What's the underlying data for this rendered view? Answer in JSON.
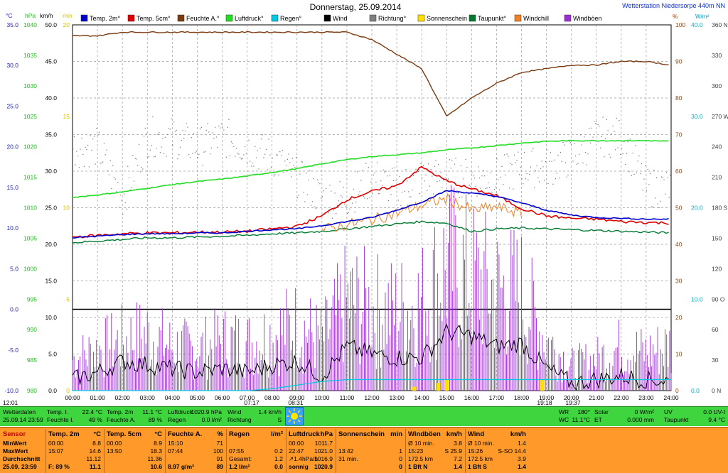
{
  "header": {
    "title": "Donnerstag, 25.09.2014",
    "station": "Wetterstation Niedersorpe 440m NN",
    "pct_unit": "%",
    "wm2_unit": "W/m²"
  },
  "legend": [
    {
      "label": "Temp. 2m°",
      "color": "#0000cc"
    },
    {
      "label": "Temp. 5cm°",
      "color": "#e00000"
    },
    {
      "label": "Feuchte A.°",
      "color": "#7a3a10"
    },
    {
      "label": "Luftdruck°",
      "color": "#22dd22"
    },
    {
      "label": "Regen°",
      "color": "#00c8e0"
    },
    {
      "label": "Wind",
      "color": "#000000"
    },
    {
      "label": "Richtung°",
      "color": "#808080"
    },
    {
      "label": "Sonnenschein",
      "color": "#ffe000"
    },
    {
      "label": "Taupunkt°",
      "color": "#007a30"
    },
    {
      "label": "Windchill",
      "color": "#f08020"
    },
    {
      "label": "Windböen",
      "color": "#9a30d0"
    }
  ],
  "axes": {
    "temp": {
      "unit": "°C",
      "ticks": [
        "35.0",
        "30.0",
        "25.0",
        "20.0",
        "15.0",
        "10.0",
        "5.0",
        "0.0",
        "-5.0",
        "-10.0"
      ],
      "color": "#2020c0"
    },
    "pressure": {
      "unit": "hPa",
      "ticks": [
        "1040",
        "1035",
        "1030",
        "1025",
        "1020",
        "1015",
        "1010",
        "1005",
        "1000",
        "995",
        "990",
        "985",
        "980"
      ],
      "color": "#20c020"
    },
    "wind": {
      "unit": "km/h",
      "ticks": [
        "50.0",
        "45.0",
        "40.0",
        "35.0",
        "30.0",
        "25.0",
        "20.0",
        "15.0",
        "10.0",
        "5.0",
        "0.0"
      ],
      "color": "#000000"
    },
    "sun": {
      "unit": "min",
      "ticks": [
        "20",
        "15",
        "10",
        "5",
        "0"
      ],
      "color": "#d8c000"
    },
    "humidity": {
      "ticks": [
        "100",
        "90",
        "80",
        "70",
        "60",
        "50",
        "40",
        "30",
        "20",
        "10",
        "0"
      ],
      "color": "#a04000"
    },
    "rain": {
      "ticks": [
        "40.0",
        "30.0",
        "20.0",
        "10.0",
        "0.0"
      ],
      "color": "#00b0c8"
    },
    "direction": {
      "ticks": [
        "360 N",
        "330",
        "300",
        "270 W",
        "240",
        "210",
        "180 S",
        "150",
        "120",
        "90 O",
        "60",
        "30",
        "0 N"
      ],
      "color": "#404040"
    },
    "hours": [
      "00:00",
      "01:00",
      "02:00",
      "03:00",
      "04:00",
      "05:00",
      "06:00",
      "07:00",
      "08:00",
      "09:00",
      "10:00",
      "11:00",
      "12:00",
      "13:00",
      "14:00",
      "15:00",
      "16:00",
      "17:00",
      "18:00",
      "19:00",
      "20:00",
      "21:00",
      "22:00",
      "23:00",
      "24:00"
    ],
    "below": {
      "left": "12:01",
      "sunrise": "07:17",
      "sunrise_alt": "08:31",
      "sunset": "19:18",
      "sunset_alt": "19:37"
    }
  },
  "chart_data": {
    "type": "line",
    "title": "Donnerstag, 25.09.2014",
    "x": [
      0,
      1,
      2,
      3,
      4,
      5,
      6,
      7,
      8,
      9,
      10,
      11,
      12,
      13,
      14,
      15,
      16,
      17,
      18,
      19,
      20,
      21,
      22,
      23,
      24
    ],
    "xlabels": [
      "00:00",
      "01:00",
      "02:00",
      "03:00",
      "04:00",
      "05:00",
      "06:00",
      "07:00",
      "08:00",
      "09:00",
      "10:00",
      "11:00",
      "12:00",
      "13:00",
      "14:00",
      "15:00",
      "16:00",
      "17:00",
      "18:00",
      "19:00",
      "20:00",
      "21:00",
      "22:00",
      "23:00",
      "24:00"
    ],
    "series": [
      {
        "name": "Temp. 2m°",
        "axis": "°C",
        "values": [
          8.8,
          9.0,
          9.2,
          9.3,
          9.3,
          9.4,
          9.4,
          9.6,
          9.8,
          9.9,
          10.3,
          10.8,
          11.3,
          12.2,
          13.2,
          14.6,
          14.3,
          13.9,
          13.1,
          12.2,
          11.6,
          11.3,
          11.2,
          11.1,
          11.1
        ]
      },
      {
        "name": "Temp. 5cm°",
        "axis": "°C",
        "values": [
          8.9,
          9.1,
          9.3,
          9.4,
          9.4,
          9.5,
          9.5,
          9.6,
          9.9,
          10.2,
          11.5,
          13.5,
          14.5,
          15.2,
          17.5,
          15.8,
          14.8,
          14.0,
          12.4,
          11.5,
          11.2,
          11.1,
          10.8,
          10.7,
          10.6
        ]
      },
      {
        "name": "Feuchte A.°",
        "axis": "%",
        "values": [
          97,
          97,
          98,
          98,
          98,
          98,
          98,
          98,
          98,
          98,
          98,
          98,
          96,
          92,
          88,
          75,
          80,
          84,
          87,
          88,
          89,
          89,
          90,
          90,
          89
        ]
      },
      {
        "name": "Luftdruck°",
        "axis": "hPa",
        "values": [
          1011.7,
          1012.1,
          1012.6,
          1013.2,
          1013.8,
          1014.3,
          1014.7,
          1015.2,
          1015.8,
          1016.4,
          1017.2,
          1017.9,
          1018.4,
          1018.7,
          1019.0,
          1019.5,
          1019.8,
          1020.2,
          1020.6,
          1020.9,
          1021.0,
          1021.0,
          1021.0,
          1021.0,
          1020.9
        ]
      },
      {
        "name": "Taupunkt°",
        "axis": "°C",
        "values": [
          8.2,
          8.4,
          8.6,
          8.8,
          8.8,
          8.9,
          9.0,
          9.1,
          9.3,
          9.4,
          9.6,
          9.9,
          10.2,
          10.5,
          10.8,
          10.6,
          9.6,
          9.9,
          10.0,
          9.9,
          9.8,
          9.7,
          9.6,
          9.5,
          9.4
        ]
      },
      {
        "name": "Windchill",
        "axis": "°C",
        "values": [
          null,
          null,
          null,
          null,
          null,
          null,
          null,
          null,
          null,
          null,
          9.8,
          10.4,
          11.0,
          11.8,
          12.8,
          13.6,
          12.2,
          12.6,
          11.8,
          null,
          null,
          null,
          null,
          null,
          null
        ]
      },
      {
        "name": "Wind",
        "axis": "km/h",
        "values": [
          1.5,
          2.5,
          4.0,
          3.5,
          3.0,
          2.5,
          3.0,
          2.5,
          3.5,
          4.0,
          2.0,
          6.0,
          5.0,
          4.5,
          4.5,
          8.0,
          7.5,
          6.0,
          6.5,
          3.0,
          1.0,
          1.5,
          2.0,
          1.5,
          1.4
        ]
      },
      {
        "name": "Windböen",
        "axis": "km/h",
        "values": [
          5.0,
          6.5,
          8.0,
          9.0,
          7.0,
          6.5,
          8.0,
          7.5,
          9.0,
          10.5,
          8.0,
          14.0,
          13.0,
          12.5,
          14.0,
          20.0,
          18.0,
          16.0,
          15.5,
          8.0,
          4.0,
          5.0,
          7.0,
          6.0,
          7.2
        ]
      },
      {
        "name": "Richtung°",
        "axis": "°",
        "values": [
          240,
          240,
          190,
          250,
          250,
          240,
          250,
          240,
          230,
          210,
          190,
          190,
          210,
          200,
          210,
          210,
          210,
          210,
          220,
          220,
          230,
          250,
          250,
          200,
          200
        ]
      },
      {
        "name": "Regen°",
        "axis": "l/m²",
        "values": [
          0,
          0,
          0,
          0,
          0,
          0,
          0,
          0,
          0.2,
          0.6,
          1.0,
          1.2,
          1.2,
          1.2,
          1.2,
          1.2,
          1.2,
          1.2,
          1.2,
          1.2,
          1.2,
          1.2,
          1.2,
          1.2,
          1.2
        ]
      }
    ],
    "sunshine_minutes": {
      "13:42": 1,
      "14:40": 2,
      "15:00": 3,
      "18:50": 3
    },
    "ylim_temp": [
      -10,
      35
    ],
    "ylim_wind": [
      0,
      50
    ],
    "grid": true,
    "legend_position": "top"
  },
  "weather_data": {
    "cells": [
      {
        "k": "Wetterdaten",
        "v": "25.09.14 23:59"
      },
      {
        "k": "Temp. I.",
        "v1": "22.4 °C",
        "k2": "Feuchte I.",
        "v2": "49 %"
      },
      {
        "k": "Temp. 2m",
        "v1": "11.1 °C",
        "k2": "Feuchte A.",
        "v2": "89 %"
      },
      {
        "k": "Luftdruck",
        "v1": "1020.9 hPa",
        "k2": "Regen",
        "v2": "0.0 l/m²"
      },
      {
        "k": "Wind",
        "v1": "1.4 km/h",
        "k2": "Richtung",
        "v2": "S"
      }
    ],
    "right": [
      {
        "k": "WR",
        "v": "180°",
        "k2": "WC",
        "v2": "11.1°C"
      },
      {
        "k": "Solar",
        "v": "0 W/m²",
        "k2": "ET",
        "v2": "0.000 mm"
      },
      {
        "k": "UV",
        "v": "0.0 UV-I",
        "k2": "Taupunkt",
        "v2": "9.4 °C"
      }
    ]
  },
  "stats": {
    "row_labels": [
      "Sensor",
      "MinWert",
      "MaxWert",
      "Durchschnitt",
      "25.09. 23:59"
    ],
    "sections": [
      {
        "h": "Temp. 2m",
        "u": "°C",
        "rows": [
          [
            "00:00",
            "8.8"
          ],
          [
            "15:07",
            "14.6"
          ],
          [
            "",
            "11.12"
          ],
          [
            "F: 89 %",
            "11.1"
          ]
        ]
      },
      {
        "h": "Temp. 5cm",
        "u": "°C",
        "rows": [
          [
            "00:00",
            "8.9"
          ],
          [
            "13:50",
            "18.3"
          ],
          [
            "",
            "11.36"
          ],
          [
            "",
            "10.6"
          ]
        ]
      },
      {
        "h": "Feuchte A.",
        "u": "%",
        "rows": [
          [
            "15:10",
            "71"
          ],
          [
            "07:44",
            "100"
          ],
          [
            "",
            "91"
          ],
          [
            "8.97 g/m³",
            "89"
          ]
        ]
      },
      {
        "h": "Regen",
        "u": "l/m²",
        "rows": [
          [
            "",
            ""
          ],
          [
            "07:55",
            "0.2"
          ],
          [
            "Gesamt:",
            "1.2"
          ],
          [
            "1.2 l/m²",
            "0.0"
          ]
        ]
      },
      {
        "h": "Luftdruck",
        "u": "hPa",
        "rows": [
          [
            "00:00",
            "1011.7"
          ],
          [
            "22:47",
            "1021.0"
          ],
          [
            "↗1.4hPa/h",
            "1016.9"
          ],
          [
            "sonnig",
            "1020.9"
          ]
        ]
      },
      {
        "h": "Sonnenschein",
        "u": "min",
        "rows": [
          [
            "",
            ""
          ],
          [
            "13:42",
            "1"
          ],
          [
            "31 min.",
            "0"
          ],
          [
            "",
            "0"
          ]
        ]
      },
      {
        "h": "Windböen",
        "u": "km/h",
        "rows": [
          [
            "Ø 10 min.",
            "3.8"
          ],
          [
            "15:23",
            "S 25.9"
          ],
          [
            "172.5 km",
            "7.2"
          ],
          [
            "1 Bft N",
            "1.4"
          ]
        ]
      },
      {
        "h": "Wind",
        "u": "km/h",
        "rows": [
          [
            "Ø 10 min.",
            "1.4"
          ],
          [
            "15:26",
            "S-SO 14.4"
          ],
          [
            "172.5 km",
            "3.9"
          ],
          [
            "1 Bft S",
            "1.4"
          ]
        ]
      }
    ]
  }
}
